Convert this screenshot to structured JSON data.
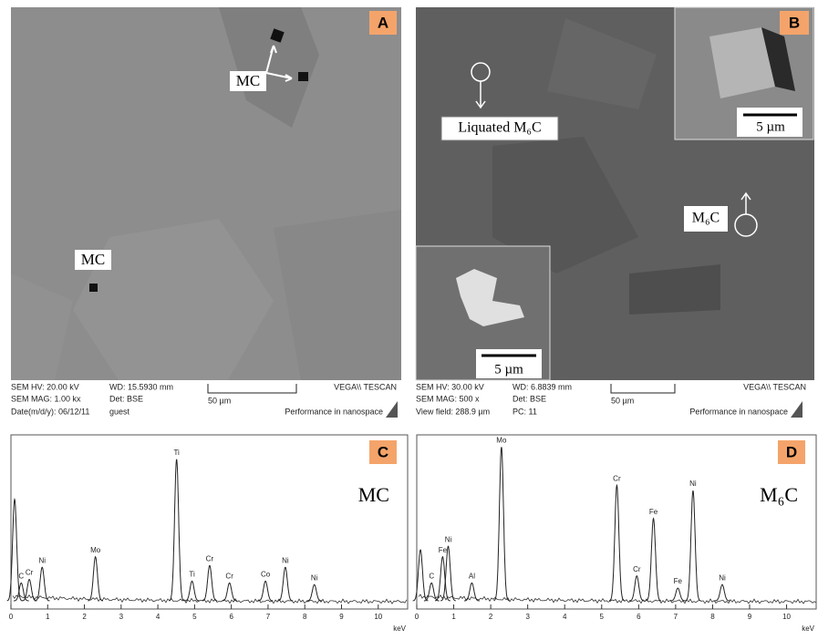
{
  "panels": {
    "a": {
      "label": "A",
      "annotations": [
        "MC",
        "MC"
      ],
      "info": {
        "hv": "SEM HV: 20.00 kV",
        "wd": "WD: 15.5930 mm",
        "mag": "SEM MAG: 1.00 kx",
        "det": "Det: BSE",
        "date": "Date(m/d/y): 06/12/11",
        "user": "guest",
        "scale": "50 µm",
        "brand": "VEGA\\\\ TESCAN",
        "slogan": "Performance in nanospace"
      }
    },
    "b": {
      "label": "B",
      "annotations": [
        "Liquated M₆C",
        "M₆C"
      ],
      "inset_scales": [
        "5 µm",
        "5 µm"
      ],
      "info": {
        "hv": "SEM HV: 30.00 kV",
        "wd": "WD: 6.8839 mm",
        "mag": "SEM MAG: 500 x",
        "det": "Det: BSE",
        "field": "View field: 288.9 µm",
        "pc": "PC:  11",
        "scale": "50 µm",
        "brand": "VEGA\\\\ TESCAN",
        "slogan": "Performance in nanospace"
      }
    }
  },
  "chart_data": [
    {
      "type": "spectrum",
      "panel_label": "C",
      "annotation": "MC",
      "xlabel": "keV",
      "xlim": [
        0,
        10.8
      ],
      "ylim": [
        0,
        100
      ],
      "xticks": [
        0,
        1,
        2,
        3,
        4,
        5,
        6,
        7,
        8,
        9,
        10
      ],
      "x": [
        0.1,
        0.28,
        0.5,
        0.85,
        2.3,
        4.51,
        4.93,
        5.41,
        5.95,
        6.93,
        7.47,
        8.26
      ],
      "values": [
        63,
        15,
        17,
        24,
        30,
        86,
        16,
        25,
        15,
        16,
        24,
        14
      ],
      "labels": [
        null,
        "C",
        "Cr",
        "Ni",
        "Mo",
        "Ti",
        "Ti",
        "Cr",
        "Cr",
        "Co",
        "Ni",
        "Ni"
      ]
    },
    {
      "type": "spectrum",
      "panel_label": "D",
      "annotation": "M₆C",
      "xlabel": "keV",
      "xlim": [
        0,
        10.8
      ],
      "ylim": [
        0,
        100
      ],
      "xticks": [
        0,
        1,
        2,
        3,
        4,
        5,
        6,
        7,
        8,
        9,
        10
      ],
      "x": [
        0.1,
        0.4,
        0.7,
        0.85,
        1.49,
        2.29,
        5.41,
        5.95,
        6.4,
        7.06,
        7.47,
        8.26
      ],
      "values": [
        34,
        15,
        30,
        36,
        15,
        93,
        71,
        19,
        52,
        12,
        68,
        14
      ],
      "labels": [
        null,
        "C",
        "Fe",
        "Ni",
        "Al",
        "Mo",
        "Cr",
        "Cr",
        "Fe",
        "Fe",
        "Ni",
        "Ni"
      ]
    }
  ]
}
